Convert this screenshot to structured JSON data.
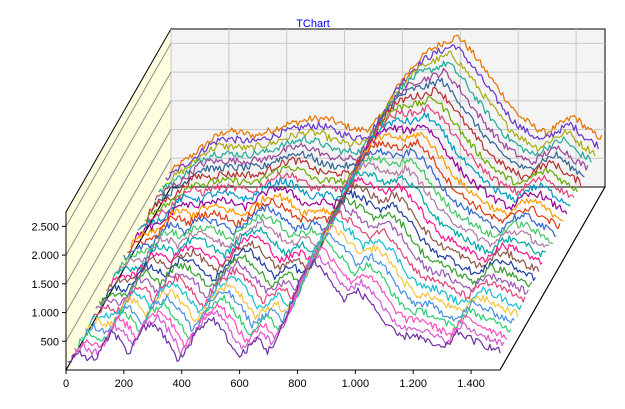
{
  "chart_data": {
    "type": "line",
    "title": "TChart",
    "view": "3d",
    "xlabel": "",
    "ylabel": "",
    "xlim": [
      0,
      1500
    ],
    "ylim": [
      0,
      2750
    ],
    "x_ticks": [
      0,
      200,
      400,
      600,
      800,
      1000,
      1200,
      1400
    ],
    "x_tick_labels": [
      "0",
      "200",
      "400",
      "600",
      "800",
      "1.000",
      "1.200",
      "1.400"
    ],
    "y_ticks": [
      500,
      1000,
      1500,
      2000,
      2500
    ],
    "y_tick_labels": [
      "500",
      "1.000",
      "1.500",
      "2.000",
      "2.500"
    ],
    "grid": true,
    "legend": "none",
    "series_count": 30,
    "points_per_series": 1500,
    "front_series_profile": {
      "x": [
        0,
        40,
        80,
        100,
        150,
        190,
        210,
        250,
        300,
        350,
        380,
        400,
        450,
        500,
        550,
        590,
        620,
        660,
        690,
        720,
        760,
        800,
        850,
        900,
        950,
        1000,
        1050,
        1100,
        1150,
        1200,
        1250,
        1300,
        1350,
        1400,
        1450,
        1500
      ],
      "y": [
        50,
        250,
        120,
        150,
        600,
        430,
        200,
        620,
        750,
        400,
        80,
        200,
        650,
        850,
        500,
        150,
        300,
        500,
        250,
        450,
        900,
        1500,
        1850,
        1550,
        1150,
        1300,
        1100,
        700,
        500,
        550,
        400,
        300,
        600,
        450,
        350,
        250
      ]
    },
    "back_series_profile": {
      "x": [
        0,
        50,
        100,
        150,
        200,
        250,
        300,
        350,
        400,
        450,
        500,
        550,
        600,
        650,
        700,
        750,
        800,
        850,
        900,
        950,
        1000,
        1050,
        1100,
        1150,
        1200,
        1250,
        1300,
        1350,
        1400,
        1450,
        1500
      ],
      "y": [
        300,
        500,
        700,
        900,
        1050,
        1000,
        950,
        1050,
        1150,
        1200,
        1250,
        1250,
        1150,
        1050,
        1100,
        1450,
        1900,
        2200,
        2450,
        2600,
        2700,
        2400,
        2050,
        1700,
        1350,
        1150,
        1000,
        1150,
        1300,
        1050,
        900
      ]
    },
    "colors": [
      "#7030a0",
      "#d45ad0",
      "#ff4fbf",
      "#2ecc71",
      "#4a90e2",
      "#f5c542",
      "#17becf",
      "#e0457b",
      "#9b59b6",
      "#33a02c",
      "#1f3f9f",
      "#8c564b",
      "#ff1493",
      "#00a8a8",
      "#b07aa1",
      "#44c767",
      "#3366cc",
      "#dc3912",
      "#ff9900",
      "#990099",
      "#0099c6",
      "#dd4477",
      "#66aa00",
      "#b82e2e",
      "#316395",
      "#994499",
      "#22aa99",
      "#aaaa11",
      "#6633cc",
      "#e67300"
    ],
    "background_color": "#ffffff",
    "left_wall_color": "#ffffe0",
    "back_wall_color": "#f4f4f4",
    "grid_color": "#c8c8c8",
    "title_color": "#0000ff"
  }
}
